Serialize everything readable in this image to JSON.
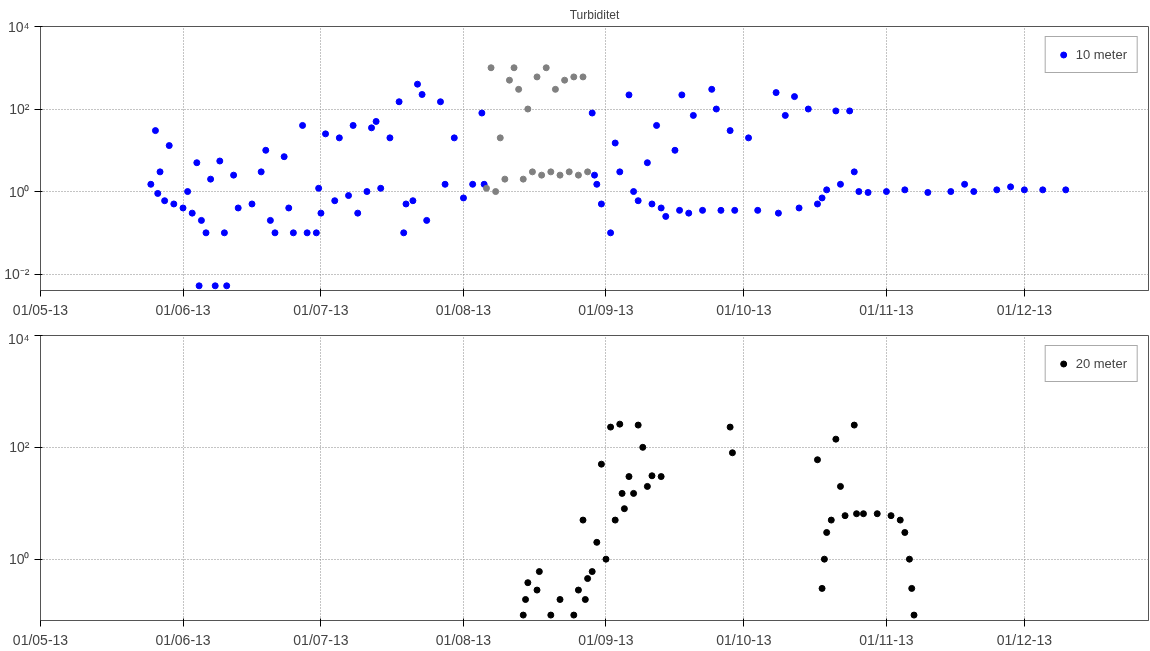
{
  "chart_data": [
    {
      "type": "scatter",
      "title": "Turbiditet",
      "xlim": [
        "2013-05-01",
        "2013-12-28"
      ],
      "xticks": [
        {
          "value": "2013-05-01",
          "label": "01/05-13"
        },
        {
          "value": "2013-06-01",
          "label": "01/06-13"
        },
        {
          "value": "2013-07-01",
          "label": "01/07-13"
        },
        {
          "value": "2013-08-01",
          "label": "01/08-13"
        },
        {
          "value": "2013-09-01",
          "label": "01/09-13"
        },
        {
          "value": "2013-10-01",
          "label": "01/10-13"
        },
        {
          "value": "2013-11-01",
          "label": "01/11-13"
        },
        {
          "value": "2013-12-01",
          "label": "01/12-13"
        }
      ],
      "ylim": [
        0.004,
        10000
      ],
      "yticks": [
        {
          "value": 0.01,
          "label": "10⁻²"
        },
        {
          "value": 1,
          "label": "10⁰"
        },
        {
          "value": 100,
          "label": "10²"
        },
        {
          "value": 10000,
          "label": "10⁴"
        }
      ],
      "log": "y",
      "grid": true,
      "legend": "top right",
      "marker": "circle",
      "series": [
        {
          "name": "10 meter",
          "color": "#0000ff",
          "x": [
            "2013-05-25",
            "2013-05-26",
            "2013-05-26T12:00",
            "2013-05-27",
            "2013-05-28",
            "2013-05-29",
            "2013-05-30",
            "2013-06-01",
            "2013-06-02",
            "2013-06-03",
            "2013-06-04",
            "2013-06-04T12:00",
            "2013-06-05",
            "2013-06-06",
            "2013-06-07",
            "2013-06-08",
            "2013-06-09",
            "2013-06-10",
            "2013-06-10T12:00",
            "2013-06-12",
            "2013-06-13",
            "2013-06-16",
            "2013-06-18",
            "2013-06-19",
            "2013-06-20",
            "2013-06-21",
            "2013-06-23",
            "2013-06-24",
            "2013-06-25",
            "2013-06-27",
            "2013-06-28",
            "2013-06-30",
            "2013-06-30T12:00",
            "2013-07-01",
            "2013-07-02",
            "2013-07-04",
            "2013-07-05",
            "2013-07-07",
            "2013-07-08",
            "2013-07-09",
            "2013-07-11",
            "2013-07-12",
            "2013-07-13",
            "2013-07-14",
            "2013-07-16",
            "2013-07-18",
            "2013-07-19",
            "2013-07-19T12:00",
            "2013-07-21",
            "2013-07-22",
            "2013-07-23",
            "2013-07-24",
            "2013-07-27",
            "2013-07-28",
            "2013-07-30",
            "2013-08-01",
            "2013-08-03",
            "2013-08-05",
            "2013-08-05T12:00",
            "2013-08-29",
            "2013-08-29T12:00",
            "2013-08-30",
            "2013-08-31",
            "2013-09-02",
            "2013-09-03",
            "2013-09-04",
            "2013-09-06",
            "2013-09-07",
            "2013-09-08",
            "2013-09-10",
            "2013-09-11",
            "2013-09-12",
            "2013-09-13",
            "2013-09-14",
            "2013-09-16",
            "2013-09-17",
            "2013-09-17T12:00",
            "2013-09-19",
            "2013-09-20",
            "2013-09-22",
            "2013-09-24",
            "2013-09-25",
            "2013-09-26",
            "2013-09-28",
            "2013-09-29",
            "2013-10-02",
            "2013-10-04",
            "2013-10-08",
            "2013-10-08T12:00",
            "2013-10-10",
            "2013-10-12",
            "2013-10-13",
            "2013-10-15",
            "2013-10-17",
            "2013-10-18",
            "2013-10-19",
            "2013-10-21",
            "2013-10-22",
            "2013-10-24",
            "2013-10-25",
            "2013-10-26",
            "2013-10-28",
            "2013-11-01",
            "2013-11-05",
            "2013-11-10",
            "2013-11-15",
            "2013-11-18",
            "2013-11-20",
            "2013-11-25",
            "2013-11-28",
            "2013-12-01",
            "2013-12-05",
            "2013-12-10"
          ],
          "values": [
            1.5,
            30,
            0.9,
            3,
            0.6,
            13,
            0.5,
            0.4,
            1,
            0.3,
            5,
            0.0052,
            0.2,
            0.1,
            2,
            0.0052,
            5.5,
            0.1,
            0.0052,
            2.5,
            0.4,
            0.5,
            3,
            10,
            0.2,
            0.1,
            7,
            0.4,
            0.1,
            40,
            0.1,
            0.1,
            1.2,
            0.3,
            25,
            0.6,
            20,
            0.8,
            40,
            0.3,
            1,
            35,
            50,
            1.2,
            20,
            150,
            0.1,
            0.5,
            0.6,
            400,
            225,
            0.2,
            150,
            1.5,
            20,
            0.7,
            1.5,
            80,
            1.5,
            80,
            2.5,
            1.5,
            0.5,
            0.1,
            15,
            3,
            220,
            1,
            0.6,
            5,
            0.5,
            40,
            0.4,
            0.25,
            10,
            0.35,
            220,
            0.3,
            70,
            0.35,
            300,
            100,
            0.35,
            30,
            0.35,
            20,
            0.35,
            250,
            0.3,
            70,
            200,
            0.4,
            100,
            0.5,
            0.7,
            1.1,
            90,
            1.5,
            90,
            3,
            1.0,
            0.95,
            1.0,
            1.1,
            0.95,
            1.0,
            1.5,
            1.0,
            1.1,
            1.3,
            1.1,
            1.1,
            1.1
          ]
        },
        {
          "color": "#808080",
          "x": [
            "2013-08-06",
            "2013-08-07",
            "2013-08-08",
            "2013-08-09",
            "2013-08-10",
            "2013-08-11",
            "2013-08-12",
            "2013-08-13",
            "2013-08-14",
            "2013-08-15",
            "2013-08-16",
            "2013-08-17",
            "2013-08-18",
            "2013-08-19",
            "2013-08-20",
            "2013-08-21",
            "2013-08-22",
            "2013-08-23",
            "2013-08-24",
            "2013-08-25",
            "2013-08-26",
            "2013-08-27",
            "2013-08-28"
          ],
          "values": [
            1.2,
            1000,
            1.0,
            20,
            2,
            500,
            1000,
            300,
            2,
            100,
            3,
            600,
            2.5,
            1000,
            3,
            300,
            2.5,
            500,
            3,
            600,
            2.5,
            600,
            3
          ]
        }
      ]
    },
    {
      "type": "scatter",
      "xlim": [
        "2013-05-01",
        "2013-12-28"
      ],
      "xticks": [
        {
          "value": "2013-05-01",
          "label": "01/05-13"
        },
        {
          "value": "2013-06-01",
          "label": "01/06-13"
        },
        {
          "value": "2013-07-01",
          "label": "01/07-13"
        },
        {
          "value": "2013-08-01",
          "label": "01/08-13"
        },
        {
          "value": "2013-09-01",
          "label": "01/09-13"
        },
        {
          "value": "2013-10-01",
          "label": "01/10-13"
        },
        {
          "value": "2013-11-01",
          "label": "01/11-13"
        },
        {
          "value": "2013-12-01",
          "label": "01/12-13"
        }
      ],
      "ylim": [
        0.08,
        10000
      ],
      "yticks": [
        {
          "value": 1,
          "label": "10⁰"
        },
        {
          "value": 100,
          "label": "10²"
        },
        {
          "value": 10000,
          "label": "10⁴"
        }
      ],
      "log": "y",
      "grid": true,
      "legend": "top right",
      "marker": "circle",
      "series": [
        {
          "name": "20 meter",
          "color": "#000000",
          "x": [
            "2013-08-14",
            "2013-08-14T12:00",
            "2013-08-15",
            "2013-08-17",
            "2013-08-17T12:00",
            "2013-08-20",
            "2013-08-22",
            "2013-08-25",
            "2013-08-26",
            "2013-08-27",
            "2013-08-27T12:00",
            "2013-08-28",
            "2013-08-29",
            "2013-08-30",
            "2013-08-31",
            "2013-09-01",
            "2013-09-02",
            "2013-09-03",
            "2013-09-04",
            "2013-09-04T12:00",
            "2013-09-05",
            "2013-09-06",
            "2013-09-07",
            "2013-09-08",
            "2013-09-09",
            "2013-09-10",
            "2013-09-11",
            "2013-09-13",
            "2013-09-28",
            "2013-09-28T12:00",
            "2013-10-17",
            "2013-10-18",
            "2013-10-18T12:00",
            "2013-10-19",
            "2013-10-20",
            "2013-10-21",
            "2013-10-22",
            "2013-10-23",
            "2013-10-25",
            "2013-10-25T12:00",
            "2013-10-27",
            "2013-10-30",
            "2013-11-02",
            "2013-11-04",
            "2013-11-05",
            "2013-11-06",
            "2013-11-06T12:00",
            "2013-11-07"
          ],
          "values": [
            0.1,
            0.19,
            0.38,
            0.28,
            0.6,
            0.1,
            0.19,
            0.1,
            0.28,
            5,
            0.19,
            0.45,
            0.6,
            2,
            50,
            1,
            230,
            5,
            260,
            15,
            8,
            30,
            15,
            250,
            100,
            20,
            31,
            30,
            230,
            80,
            60,
            0.3,
            1,
            3,
            5,
            140,
            20,
            6,
            250,
            6.5,
            6.5,
            6.5,
            6,
            5,
            3,
            1,
            0.3,
            0.1
          ]
        }
      ]
    }
  ]
}
